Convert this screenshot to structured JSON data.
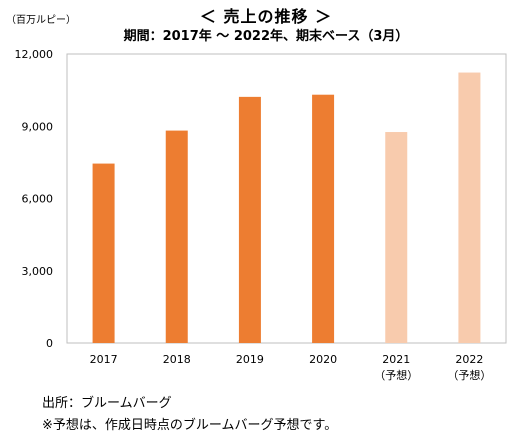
{
  "title": "＜ 売上の推移 ＞",
  "subtitle": "期間：2017年 ～ 2022年、期末ベース（3月）",
  "unit_label": "（百万ルピー）",
  "chart_data": {
    "type": "bar",
    "categories": [
      "2017",
      "2018",
      "2019",
      "2020",
      "2021",
      "2022"
    ],
    "category_sublabels": [
      "",
      "",
      "",
      "",
      "（予想）",
      "（予想）"
    ],
    "values": [
      7450,
      8820,
      10220,
      10310,
      8760,
      11230
    ],
    "forecast": [
      false,
      false,
      false,
      false,
      true,
      true
    ],
    "y_ticks": [
      0,
      3000,
      6000,
      9000,
      12000
    ],
    "y_tick_labels": [
      "0",
      "3,000",
      "6,000",
      "9,000",
      "12,000"
    ],
    "ylim": [
      0,
      12000
    ],
    "grid": false,
    "colors": {
      "actual": "#ED7D31",
      "forecast": "#F8CBAD",
      "frame": "#BFBFBF"
    }
  },
  "footer": {
    "source": "出所：ブルームバーグ",
    "note": "※予想は、作成日時点のブルームバーグ予想です。"
  }
}
